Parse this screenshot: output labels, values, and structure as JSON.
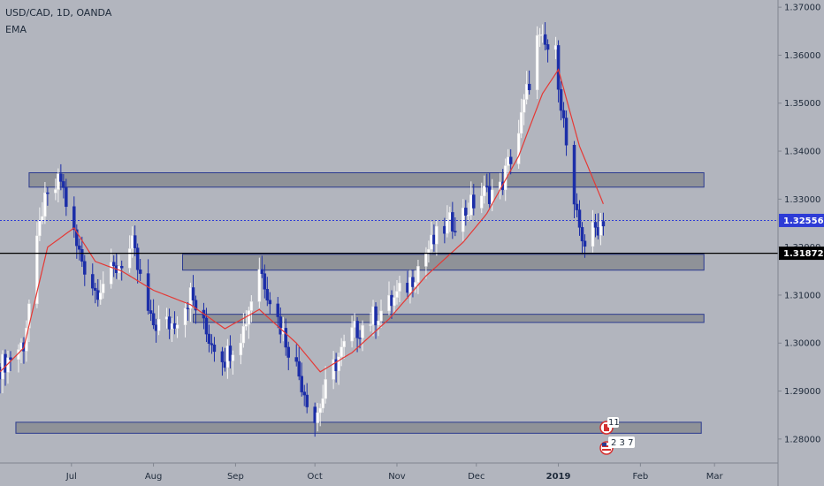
{
  "header": {
    "title": "USD/CAD, 1D, OANDA",
    "indicator": "EMA"
  },
  "price_labels": {
    "current": "1.32556",
    "line": "1.31872"
  },
  "events": [
    {
      "label": "11",
      "icon": "canada-flag-icon",
      "date": "2019-01-17"
    },
    {
      "label": "2 3 7",
      "icon": "us-flag-icon",
      "date": "2019-01-17"
    }
  ],
  "colors": {
    "background": "#b2b5be",
    "bull_candle": "#ffffff",
    "bear_candle": "#1c2ea8",
    "ema": "#e53935",
    "zone_fill": "#8f9298",
    "zone_border": "#2b3a8f",
    "current_price": "#2d3bd6",
    "hline": "#000000"
  },
  "chart_data": {
    "type": "candlestick",
    "symbol": "USD/CAD",
    "timeframe": "1D",
    "source": "OANDA",
    "ylim": [
      1.275,
      1.3715
    ],
    "yticks": [
      "1.28000",
      "1.29000",
      "1.30000",
      "1.31000",
      "1.32000",
      "1.33000",
      "1.34000",
      "1.35000",
      "1.36000",
      "1.37000"
    ],
    "x_start": "2018-06-04",
    "x_end": "2019-03-25",
    "xticks": [
      {
        "label": "Jul",
        "date": "2018-07-01"
      },
      {
        "label": "Aug",
        "date": "2018-08-01"
      },
      {
        "label": "Sep",
        "date": "2018-09-01"
      },
      {
        "label": "Oct",
        "date": "2018-10-01"
      },
      {
        "label": "Nov",
        "date": "2018-11-01"
      },
      {
        "label": "Dec",
        "date": "2018-12-01"
      },
      {
        "label": "2019",
        "date": "2019-01-01"
      },
      {
        "label": "Feb",
        "date": "2019-02-01"
      },
      {
        "label": "Mar",
        "date": "2019-03-01"
      }
    ],
    "anchors": [
      [
        "2018-06-04",
        1.295
      ],
      [
        "2018-06-13",
        1.3
      ],
      [
        "2018-06-20",
        1.328
      ],
      [
        "2018-06-27",
        1.334
      ],
      [
        "2018-07-03",
        1.32
      ],
      [
        "2018-07-10",
        1.311
      ],
      [
        "2018-07-17",
        1.315
      ],
      [
        "2018-07-24",
        1.32
      ],
      [
        "2018-07-31",
        1.304
      ],
      [
        "2018-08-08",
        1.304
      ],
      [
        "2018-08-15",
        1.31
      ],
      [
        "2018-08-21",
        1.302
      ],
      [
        "2018-08-28",
        1.297
      ],
      [
        "2018-09-04",
        1.303
      ],
      [
        "2018-09-10",
        1.316
      ],
      [
        "2018-09-17",
        1.305
      ],
      [
        "2018-09-24",
        1.295
      ],
      [
        "2018-10-01",
        1.284
      ],
      [
        "2018-10-08",
        1.295
      ],
      [
        "2018-10-15",
        1.302
      ],
      [
        "2018-10-22",
        1.305
      ],
      [
        "2018-10-29",
        1.308
      ],
      [
        "2018-11-05",
        1.312
      ],
      [
        "2018-11-12",
        1.319
      ],
      [
        "2018-11-19",
        1.324
      ],
      [
        "2018-11-26",
        1.327
      ],
      [
        "2018-12-03",
        1.331
      ],
      [
        "2018-12-10",
        1.332
      ],
      [
        "2018-12-17",
        1.344
      ],
      [
        "2018-12-24",
        1.363
      ],
      [
        "2018-12-31",
        1.36
      ],
      [
        "2019-01-07",
        1.327
      ],
      [
        "2019-01-11",
        1.321
      ],
      [
        "2019-01-18",
        1.326
      ]
    ],
    "ema_anchors": [
      [
        "2018-06-04",
        1.294
      ],
      [
        "2018-06-13",
        1.299
      ],
      [
        "2018-06-22",
        1.32
      ],
      [
        "2018-07-02",
        1.324
      ],
      [
        "2018-07-10",
        1.317
      ],
      [
        "2018-07-20",
        1.315
      ],
      [
        "2018-08-01",
        1.311
      ],
      [
        "2018-08-15",
        1.308
      ],
      [
        "2018-08-28",
        1.303
      ],
      [
        "2018-09-10",
        1.307
      ],
      [
        "2018-09-24",
        1.3
      ],
      [
        "2018-10-03",
        1.294
      ],
      [
        "2018-10-15",
        1.298
      ],
      [
        "2018-10-29",
        1.305
      ],
      [
        "2018-11-12",
        1.314
      ],
      [
        "2018-11-26",
        1.321
      ],
      [
        "2018-12-05",
        1.327
      ],
      [
        "2018-12-17",
        1.339
      ],
      [
        "2018-12-26",
        1.352
      ],
      [
        "2019-01-01",
        1.357
      ],
      [
        "2019-01-09",
        1.341
      ],
      [
        "2019-01-18",
        1.329
      ]
    ],
    "zones": [
      {
        "from": "2018-06-15",
        "to": "2019-02-25",
        "top": 1.3355,
        "bottom": 1.3325
      },
      {
        "from": "2018-08-12",
        "to": "2019-02-25",
        "top": 1.3185,
        "bottom": 1.3152
      },
      {
        "from": "2018-08-16",
        "to": "2019-02-25",
        "top": 1.306,
        "bottom": 1.3043
      },
      {
        "from": "2018-06-10",
        "to": "2019-02-24",
        "top": 1.2835,
        "bottom": 1.2812
      }
    ],
    "current_price": 1.32556,
    "hline": 1.31872,
    "ema_label": "EMA"
  }
}
